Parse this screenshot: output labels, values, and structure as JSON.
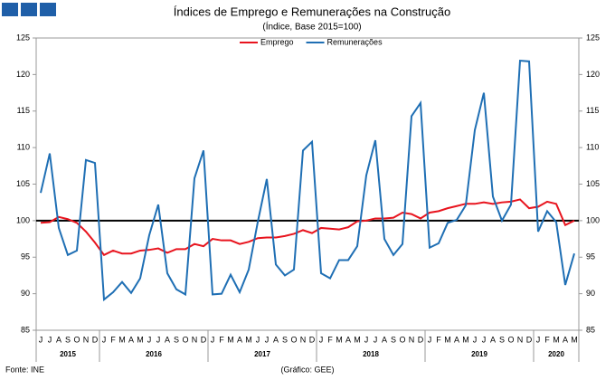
{
  "chart_data": {
    "type": "line",
    "title": "Índices de Emprego e Remunerações na Construção",
    "subtitle": "(Índice, Base 2015=100)",
    "categories": [
      "J",
      "J",
      "A",
      "S",
      "O",
      "N",
      "D",
      "J",
      "F",
      "M",
      "A",
      "M",
      "J",
      "J",
      "A",
      "S",
      "O",
      "N",
      "D",
      "J",
      "F",
      "M",
      "A",
      "M",
      "J",
      "J",
      "A",
      "S",
      "O",
      "N",
      "D",
      "J",
      "F",
      "M",
      "A",
      "M",
      "J",
      "J",
      "A",
      "S",
      "O",
      "N",
      "D",
      "J",
      "F",
      "M",
      "A",
      "M",
      "J",
      "J",
      "A",
      "S",
      "O",
      "N",
      "D",
      "J",
      "F",
      "M",
      "A",
      "M"
    ],
    "years": [
      "2015",
      "2016",
      "2017",
      "2018",
      "2019",
      "2020"
    ],
    "series": [
      {
        "name": "Emprego",
        "color": "#e8141e",
        "values": [
          99.7,
          99.8,
          100.5,
          100.2,
          99.7,
          98.5,
          97,
          95.3,
          95.9,
          95.5,
          95.5,
          95.9,
          96,
          96.2,
          95.6,
          96.1,
          96.1,
          96.8,
          96.5,
          97.5,
          97.3,
          97.3,
          96.8,
          97.1,
          97.6,
          97.7,
          97.7,
          97.9,
          98.2,
          98.7,
          98.3,
          99,
          98.9,
          98.8,
          99.1,
          99.9,
          100,
          100.3,
          100.3,
          100.4,
          101.1,
          100.9,
          100.3,
          101.1,
          101.3,
          101.7,
          102,
          102.3,
          102.3,
          102.5,
          102.3,
          102.5,
          102.6,
          102.9,
          101.7,
          101.9,
          102.6,
          102.3,
          99.4,
          100
        ]
      },
      {
        "name": "Remunerações",
        "color": "#1f6fb4",
        "values": [
          103.8,
          109.2,
          99,
          95.3,
          95.9,
          108.3,
          107.9,
          89.2,
          90.2,
          91.6,
          90.1,
          92.1,
          98,
          102.2,
          92.8,
          90.6,
          89.9,
          105.8,
          109.6,
          89.9,
          90,
          92.6,
          90.2,
          93.3,
          99.8,
          105.7,
          94,
          92.5,
          93.3,
          109.6,
          110.8,
          92.8,
          92.1,
          94.6,
          94.6,
          96.5,
          106.2,
          111,
          97.5,
          95.3,
          96.8,
          114.3,
          116.1,
          96.3,
          96.9,
          99.7,
          100.1,
          102.1,
          112.4,
          117.5,
          103.3,
          100,
          102.2,
          121.9,
          121.8,
          98.5,
          101.3,
          99.8,
          91.2,
          95.5
        ]
      }
    ],
    "ylim": [
      85,
      125
    ],
    "yticks": [
      85,
      90,
      95,
      100,
      105,
      110,
      115,
      120,
      125
    ],
    "y2lim": [
      85,
      125
    ],
    "y2ticks": [
      85,
      90,
      95,
      100,
      105,
      110,
      115,
      120,
      125
    ],
    "reference_line": 100,
    "legend": "top",
    "source": "Fonte: INE",
    "credit": "(Gráfico: GEE)"
  }
}
